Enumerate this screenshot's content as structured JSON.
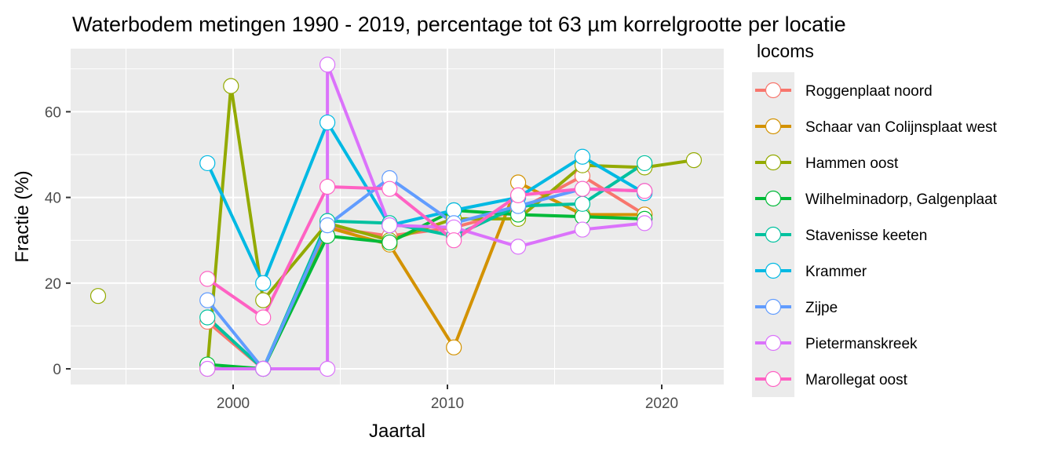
{
  "chart_data": {
    "type": "line",
    "title": "Waterbodem metingen 1990 - 2019, percentage tot 63 µm korrelgrootte per locatie",
    "xlabel": "Jaartal",
    "ylabel": "Fractie (%)",
    "xlim": [
      1992.5,
      2022.8
    ],
    "ylim": [
      -4,
      74
    ],
    "xticks": [
      2000,
      2010,
      2020
    ],
    "yticks": [
      0,
      20,
      40,
      60
    ],
    "grid": true,
    "legend": {
      "title": "locoms",
      "placement": "right"
    },
    "series": [
      {
        "name": "Roggenplaat noord",
        "color": "#F8766D",
        "x": [
          1998.8,
          2001.4,
          2004.4,
          2007.3,
          2010.3,
          2013.3,
          2016.3,
          2019.2
        ],
        "y": [
          11,
          0,
          33,
          31,
          33,
          37,
          45,
          36
        ]
      },
      {
        "name": "Schaar van Colijnsplaat west",
        "color": "#D39200",
        "x": [
          1998.8,
          2001.4,
          2004.4,
          2007.3,
          2010.3,
          2013.3,
          2016.3,
          2019.2
        ],
        "y": [
          0,
          0,
          33,
          29,
          5,
          43.5,
          36,
          36
        ]
      },
      {
        "name": "Hammen oost",
        "color": "#93AA00",
        "x": [
          1993.7,
          1998.8,
          1999.9,
          2001.4,
          2004.4,
          2007.3,
          2010.3,
          2013.3,
          2016.3,
          2019.2,
          2021.5
        ],
        "y": [
          17,
          0.5,
          66,
          16,
          34,
          30,
          35,
          35,
          47.5,
          47,
          48.7
        ],
        "breakAfter": 0
      },
      {
        "name": "Wilhelminadorp, Galgenplaat",
        "color": "#00BA38",
        "x": [
          1998.8,
          2001.4,
          2004.4,
          2007.3,
          2010.3,
          2013.3,
          2016.3,
          2019.2
        ],
        "y": [
          1,
          0,
          31,
          29.5,
          37,
          36,
          35.5,
          35
        ]
      },
      {
        "name": "Stavenisse keeten",
        "color": "#00C19F",
        "x": [
          1998.8,
          2001.4,
          2004.4,
          2007.3,
          2010.3,
          2013.3,
          2016.3,
          2019.2
        ],
        "y": [
          12,
          0,
          34.5,
          34,
          31,
          38,
          38.5,
          48
        ]
      },
      {
        "name": "Krammer",
        "color": "#00B9E3",
        "x": [
          1998.8,
          2001.4,
          2004.4,
          2007.3,
          2010.3,
          2013.3,
          2016.3,
          2019.2
        ],
        "y": [
          48,
          20,
          57.5,
          33.5,
          37,
          40,
          49.5,
          41
        ]
      },
      {
        "name": "Zijpe",
        "color": "#619CFF",
        "x": [
          1998.8,
          2001.4,
          2004.4,
          2007.3,
          2010.3,
          2013.3,
          2016.3,
          2019.2
        ],
        "y": [
          16,
          0,
          33.5,
          44.5,
          34,
          38,
          42,
          41.5
        ]
      },
      {
        "name": "Pietermanskreek",
        "color": "#DB72FB",
        "x": [
          1998.8,
          2001.4,
          2004.4,
          2004.4,
          2007.3,
          2010.3,
          2013.3,
          2016.3,
          2019.2
        ],
        "y": [
          0,
          0,
          0,
          71,
          33.5,
          33,
          28.5,
          32.5,
          34
        ]
      },
      {
        "name": "Marollegat oost",
        "color": "#FF61C3",
        "x": [
          1998.8,
          2001.4,
          2004.4,
          2007.3,
          2010.3,
          2013.3,
          2016.3,
          2019.2
        ],
        "y": [
          21,
          12,
          42.5,
          42,
          30,
          40.5,
          42,
          41.5
        ]
      }
    ]
  }
}
